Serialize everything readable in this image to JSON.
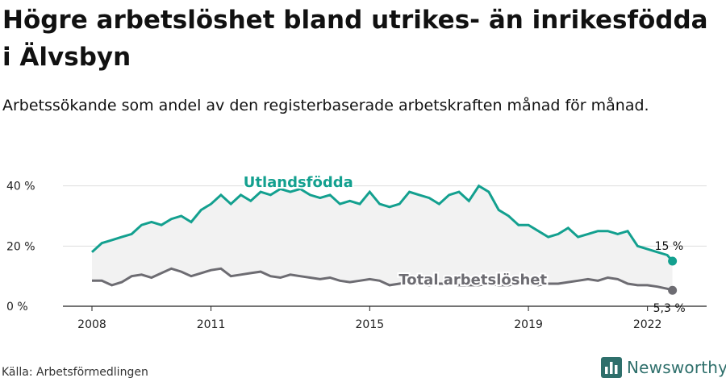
{
  "title": "Högre arbetslöshet bland utrikes- än inrikesfödda i Älvsbyn",
  "subtitle": "Arbetssökande som andel av den registerbaserade arbetskraften månad för månad.",
  "source": "Källa: Arbetsförmedlingen",
  "brand": {
    "name": "Newsworthy",
    "icon": "newsworthy-logo-icon"
  },
  "colors": {
    "foreign": "#13a08f",
    "total": "#6d6c72",
    "band": "#f2f2f2",
    "grid": "#dddddd"
  },
  "chart_data": {
    "type": "line",
    "title": "Högre arbetslöshet bland utrikes- än inrikesfödda i Älvsbyn",
    "xlabel": "",
    "ylabel": "",
    "xlim": [
      2008.0,
      2022.8
    ],
    "ylim": [
      0,
      45
    ],
    "y_ticks": [
      0,
      20,
      40
    ],
    "y_tick_labels": [
      "0 %",
      "20 %",
      "40 %"
    ],
    "x_ticks": [
      2008,
      2011,
      2015,
      2019,
      2022
    ],
    "x_tick_labels": [
      "2008",
      "2011",
      "2015",
      "2019",
      "2022"
    ],
    "grid": true,
    "series": [
      {
        "name": "Utlandsfödda",
        "end_label": "15 %",
        "x": [
          2008.0,
          2008.25,
          2008.5,
          2008.75,
          2009.0,
          2009.25,
          2009.5,
          2009.75,
          2010.0,
          2010.25,
          2010.5,
          2010.75,
          2011.0,
          2011.25,
          2011.5,
          2011.75,
          2012.0,
          2012.25,
          2012.5,
          2012.75,
          2013.0,
          2013.25,
          2013.5,
          2013.75,
          2014.0,
          2014.25,
          2014.5,
          2014.75,
          2015.0,
          2015.25,
          2015.5,
          2015.75,
          2016.0,
          2016.25,
          2016.5,
          2016.75,
          2017.0,
          2017.25,
          2017.5,
          2017.75,
          2018.0,
          2018.25,
          2018.5,
          2018.75,
          2019.0,
          2019.25,
          2019.5,
          2019.75,
          2020.0,
          2020.25,
          2020.5,
          2020.75,
          2021.0,
          2021.25,
          2021.5,
          2021.75,
          2022.0,
          2022.25,
          2022.5,
          2022.63
        ],
        "values": [
          18,
          21,
          22,
          23,
          24,
          27,
          28,
          27,
          29,
          30,
          28,
          32,
          34,
          37,
          34,
          37,
          35,
          38,
          37,
          39,
          38,
          39,
          37,
          36,
          37,
          34,
          35,
          34,
          38,
          34,
          33,
          34,
          38,
          37,
          36,
          34,
          37,
          38,
          35,
          40,
          38,
          32,
          30,
          27,
          27,
          25,
          23,
          24,
          26,
          23,
          24,
          25,
          25,
          24,
          25,
          20,
          19,
          18,
          17,
          15
        ]
      },
      {
        "name": "Total arbetslöshet",
        "end_label": "5,3 %",
        "x": [
          2008.0,
          2008.25,
          2008.5,
          2008.75,
          2009.0,
          2009.25,
          2009.5,
          2009.75,
          2010.0,
          2010.25,
          2010.5,
          2010.75,
          2011.0,
          2011.25,
          2011.5,
          2011.75,
          2012.0,
          2012.25,
          2012.5,
          2012.75,
          2013.0,
          2013.25,
          2013.5,
          2013.75,
          2014.0,
          2014.25,
          2014.5,
          2014.75,
          2015.0,
          2015.25,
          2015.5,
          2015.75,
          2016.0,
          2016.25,
          2016.5,
          2016.75,
          2017.0,
          2017.25,
          2017.5,
          2017.75,
          2018.0,
          2018.25,
          2018.5,
          2018.75,
          2019.0,
          2019.25,
          2019.5,
          2019.75,
          2020.0,
          2020.25,
          2020.5,
          2020.75,
          2021.0,
          2021.25,
          2021.5,
          2021.75,
          2022.0,
          2022.25,
          2022.5,
          2022.63
        ],
        "values": [
          8.5,
          8.5,
          7,
          8,
          10,
          10.5,
          9.5,
          11,
          12.5,
          11.5,
          10,
          11,
          12,
          12.5,
          10,
          10.5,
          11,
          11.5,
          10,
          9.5,
          10.5,
          10,
          9.5,
          9,
          9.5,
          8.5,
          8,
          8.5,
          9,
          8.5,
          7,
          7.5,
          8,
          7.5,
          7,
          7.5,
          7.5,
          7,
          7,
          7,
          7.5,
          7,
          7,
          7.5,
          7.5,
          7,
          7.5,
          7.5,
          8,
          8.5,
          9,
          8.5,
          9.5,
          9,
          7.5,
          7,
          7,
          6.5,
          5.8,
          5.3
        ]
      }
    ]
  }
}
